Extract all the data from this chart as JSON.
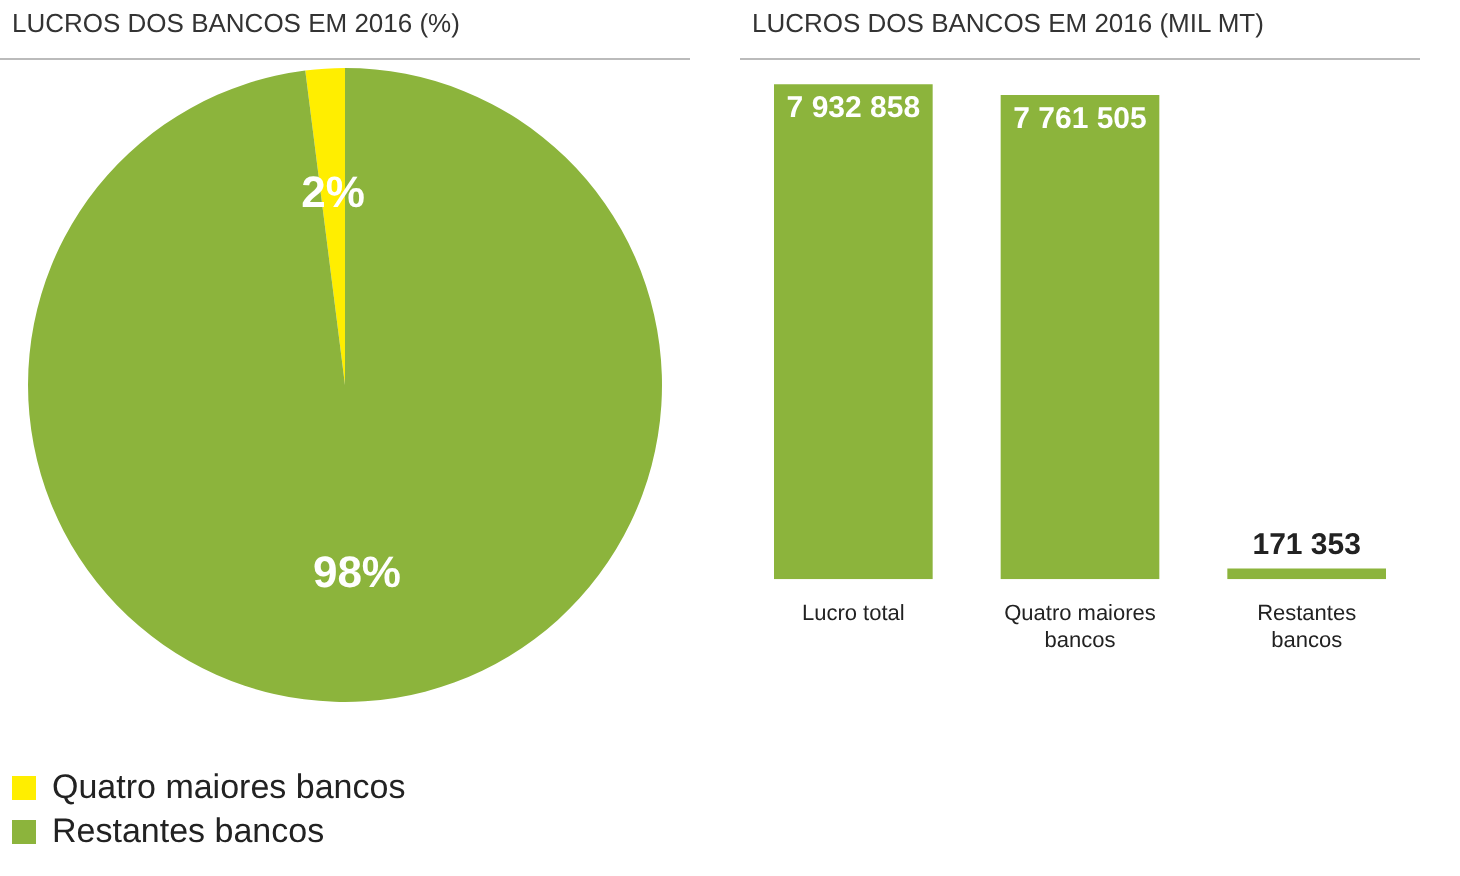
{
  "chart_data": [
    {
      "type": "pie",
      "title": "LUCROS DOS BANCOS EM 2016 (%)",
      "categories": [
        "Quatro maiores bancos",
        "Restantes bancos"
      ],
      "values": [
        2,
        98
      ],
      "colors": [
        "#ffee00",
        "#8cb43c"
      ],
      "value_labels": [
        "2%",
        "98%"
      ],
      "legend": "bottom"
    },
    {
      "type": "bar",
      "title": "LUCROS DOS BANCOS EM 2016 (MIL MT)",
      "categories": [
        "Lucro total",
        "Quatro maiores bancos",
        "Restantes bancos"
      ],
      "values": [
        7932858,
        7761505,
        171353
      ],
      "color": "#8cb43c",
      "value_labels": [
        "7 932 858",
        "7 761 505",
        "171 353"
      ]
    }
  ]
}
